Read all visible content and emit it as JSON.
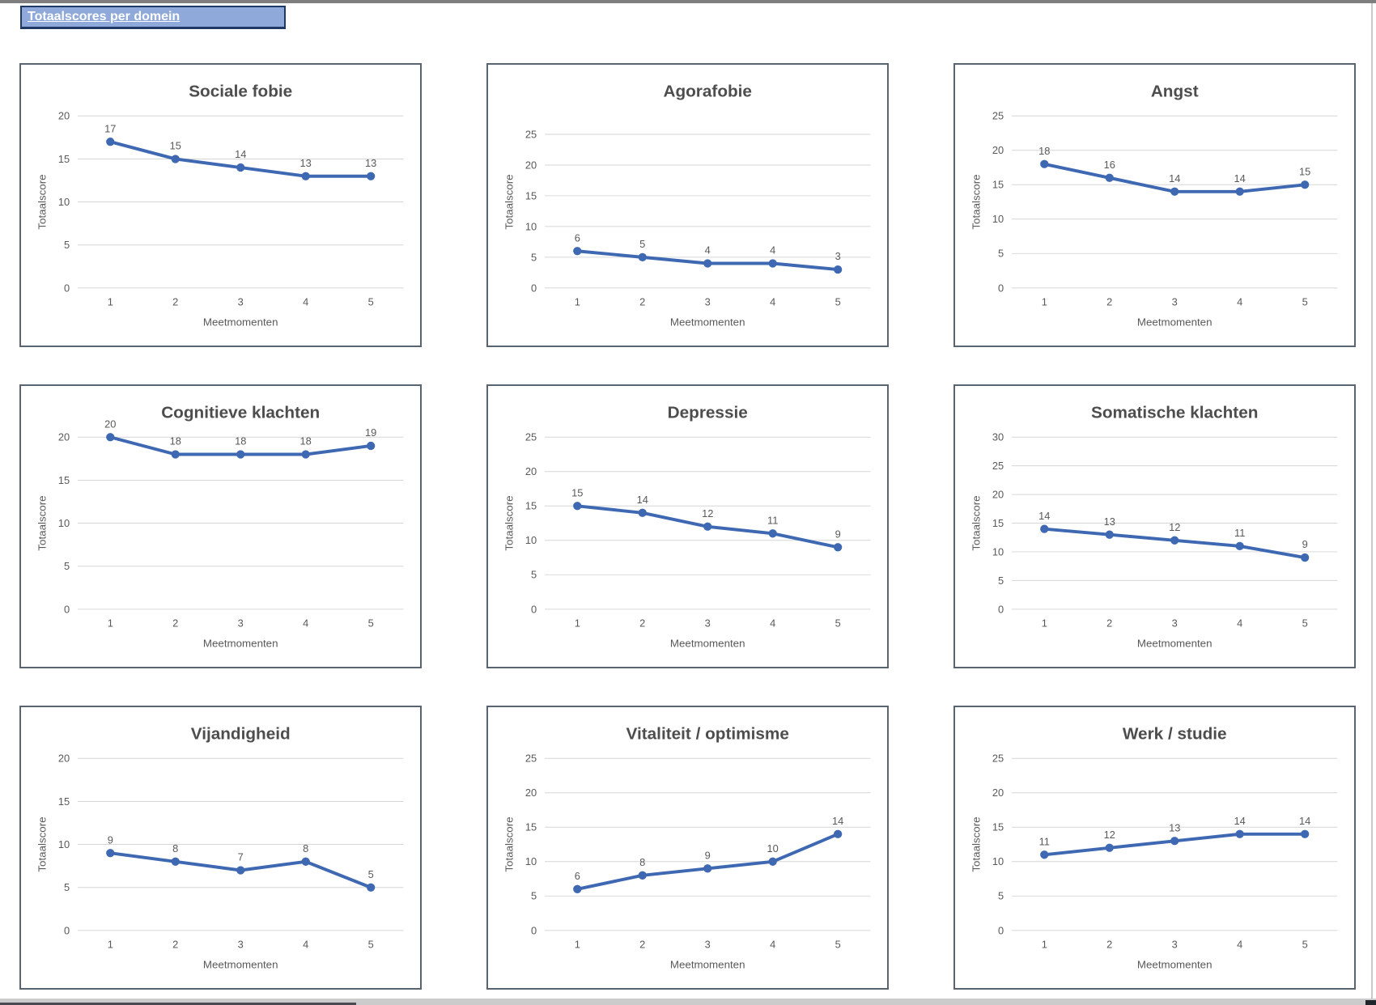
{
  "header": {
    "title": "Totaalscores per domein"
  },
  "colors": {
    "header_bg": "#8FA9DA",
    "header_border": "#203864",
    "header_text": "#FFFFFF",
    "line": "#3E68B2",
    "grid": "#D6D6D6",
    "labels": "#595959",
    "title_text": "#4D4D4D",
    "panel_border": "#5A6470"
  },
  "chart_defaults": {
    "line_color": "#3E68B2",
    "grid_color": "#D6D6D6",
    "label_color": "#595959",
    "title_color": "#4D4D4D",
    "legend": "none",
    "grid_lines": "horizontal"
  },
  "chart_data": [
    {
      "id": "sociale-fobie",
      "type": "line",
      "title": "Sociale fobie",
      "categories": [
        "1",
        "2",
        "3",
        "4",
        "5"
      ],
      "values": [
        17,
        15,
        14,
        13,
        13
      ],
      "xlabel": "Meetmomenten",
      "ylabel": "Totaalscore",
      "ylim": [
        0,
        20
      ],
      "ytick_max": 20,
      "ytick_step": 5
    },
    {
      "id": "agorafobie",
      "type": "line",
      "title": "Agorafobie",
      "categories": [
        "1",
        "2",
        "3",
        "4",
        "5"
      ],
      "values": [
        6,
        5,
        4,
        4,
        3
      ],
      "xlabel": "Meetmomenten",
      "ylabel": "Totaalscore",
      "ylim": [
        0,
        28
      ],
      "ytick_max": 25,
      "ytick_step": 5
    },
    {
      "id": "angst",
      "type": "line",
      "title": "Angst",
      "categories": [
        "1",
        "2",
        "3",
        "4",
        "5"
      ],
      "values": [
        18,
        16,
        14,
        14,
        15
      ],
      "xlabel": "Meetmomenten",
      "ylabel": "Totaalscore",
      "ylim": [
        0,
        25
      ],
      "ytick_max": 25,
      "ytick_step": 5
    },
    {
      "id": "cognitieve-klachten",
      "type": "line",
      "title": "Cognitieve klachten",
      "categories": [
        "1",
        "2",
        "3",
        "4",
        "5"
      ],
      "values": [
        20,
        18,
        18,
        18,
        19
      ],
      "xlabel": "Meetmomenten",
      "ylabel": "Totaalscore",
      "ylim": [
        0,
        20
      ],
      "ytick_max": 20,
      "ytick_step": 5
    },
    {
      "id": "depressie",
      "type": "line",
      "title": "Depressie",
      "categories": [
        "1",
        "2",
        "3",
        "4",
        "5"
      ],
      "values": [
        15,
        14,
        12,
        11,
        9
      ],
      "xlabel": "Meetmomenten",
      "ylabel": "Totaalscore",
      "ylim": [
        0,
        25
      ],
      "ytick_max": 25,
      "ytick_step": 5
    },
    {
      "id": "somatische-klachten",
      "type": "line",
      "title": "Somatische klachten",
      "categories": [
        "1",
        "2",
        "3",
        "4",
        "5"
      ],
      "values": [
        14,
        13,
        12,
        11,
        9
      ],
      "xlabel": "Meetmomenten",
      "ylabel": "Totaalscore",
      "ylim": [
        0,
        30
      ],
      "ytick_max": 30,
      "ytick_step": 5
    },
    {
      "id": "vijandigheid",
      "type": "line",
      "title": "Vijandigheid",
      "categories": [
        "1",
        "2",
        "3",
        "4",
        "5"
      ],
      "values": [
        9,
        8,
        7,
        8,
        5
      ],
      "xlabel": "Meetmomenten",
      "ylabel": "Totaalscore",
      "ylim": [
        0,
        20
      ],
      "ytick_max": 20,
      "ytick_step": 5
    },
    {
      "id": "vitaliteit-optimisme",
      "type": "line",
      "title": "Vitaliteit / optimisme",
      "categories": [
        "1",
        "2",
        "3",
        "4",
        "5"
      ],
      "values": [
        6,
        8,
        9,
        10,
        14
      ],
      "xlabel": "Meetmomenten",
      "ylabel": "Totaalscore",
      "ylim": [
        0,
        25
      ],
      "ytick_max": 25,
      "ytick_step": 5
    },
    {
      "id": "werk-studie",
      "type": "line",
      "title": "Werk / studie",
      "categories": [
        "1",
        "2",
        "3",
        "4",
        "5"
      ],
      "values": [
        11,
        12,
        13,
        14,
        14
      ],
      "xlabel": "Meetmomenten",
      "ylabel": "Totaalscore",
      "ylim": [
        0,
        25
      ],
      "ytick_max": 25,
      "ytick_step": 5
    }
  ]
}
